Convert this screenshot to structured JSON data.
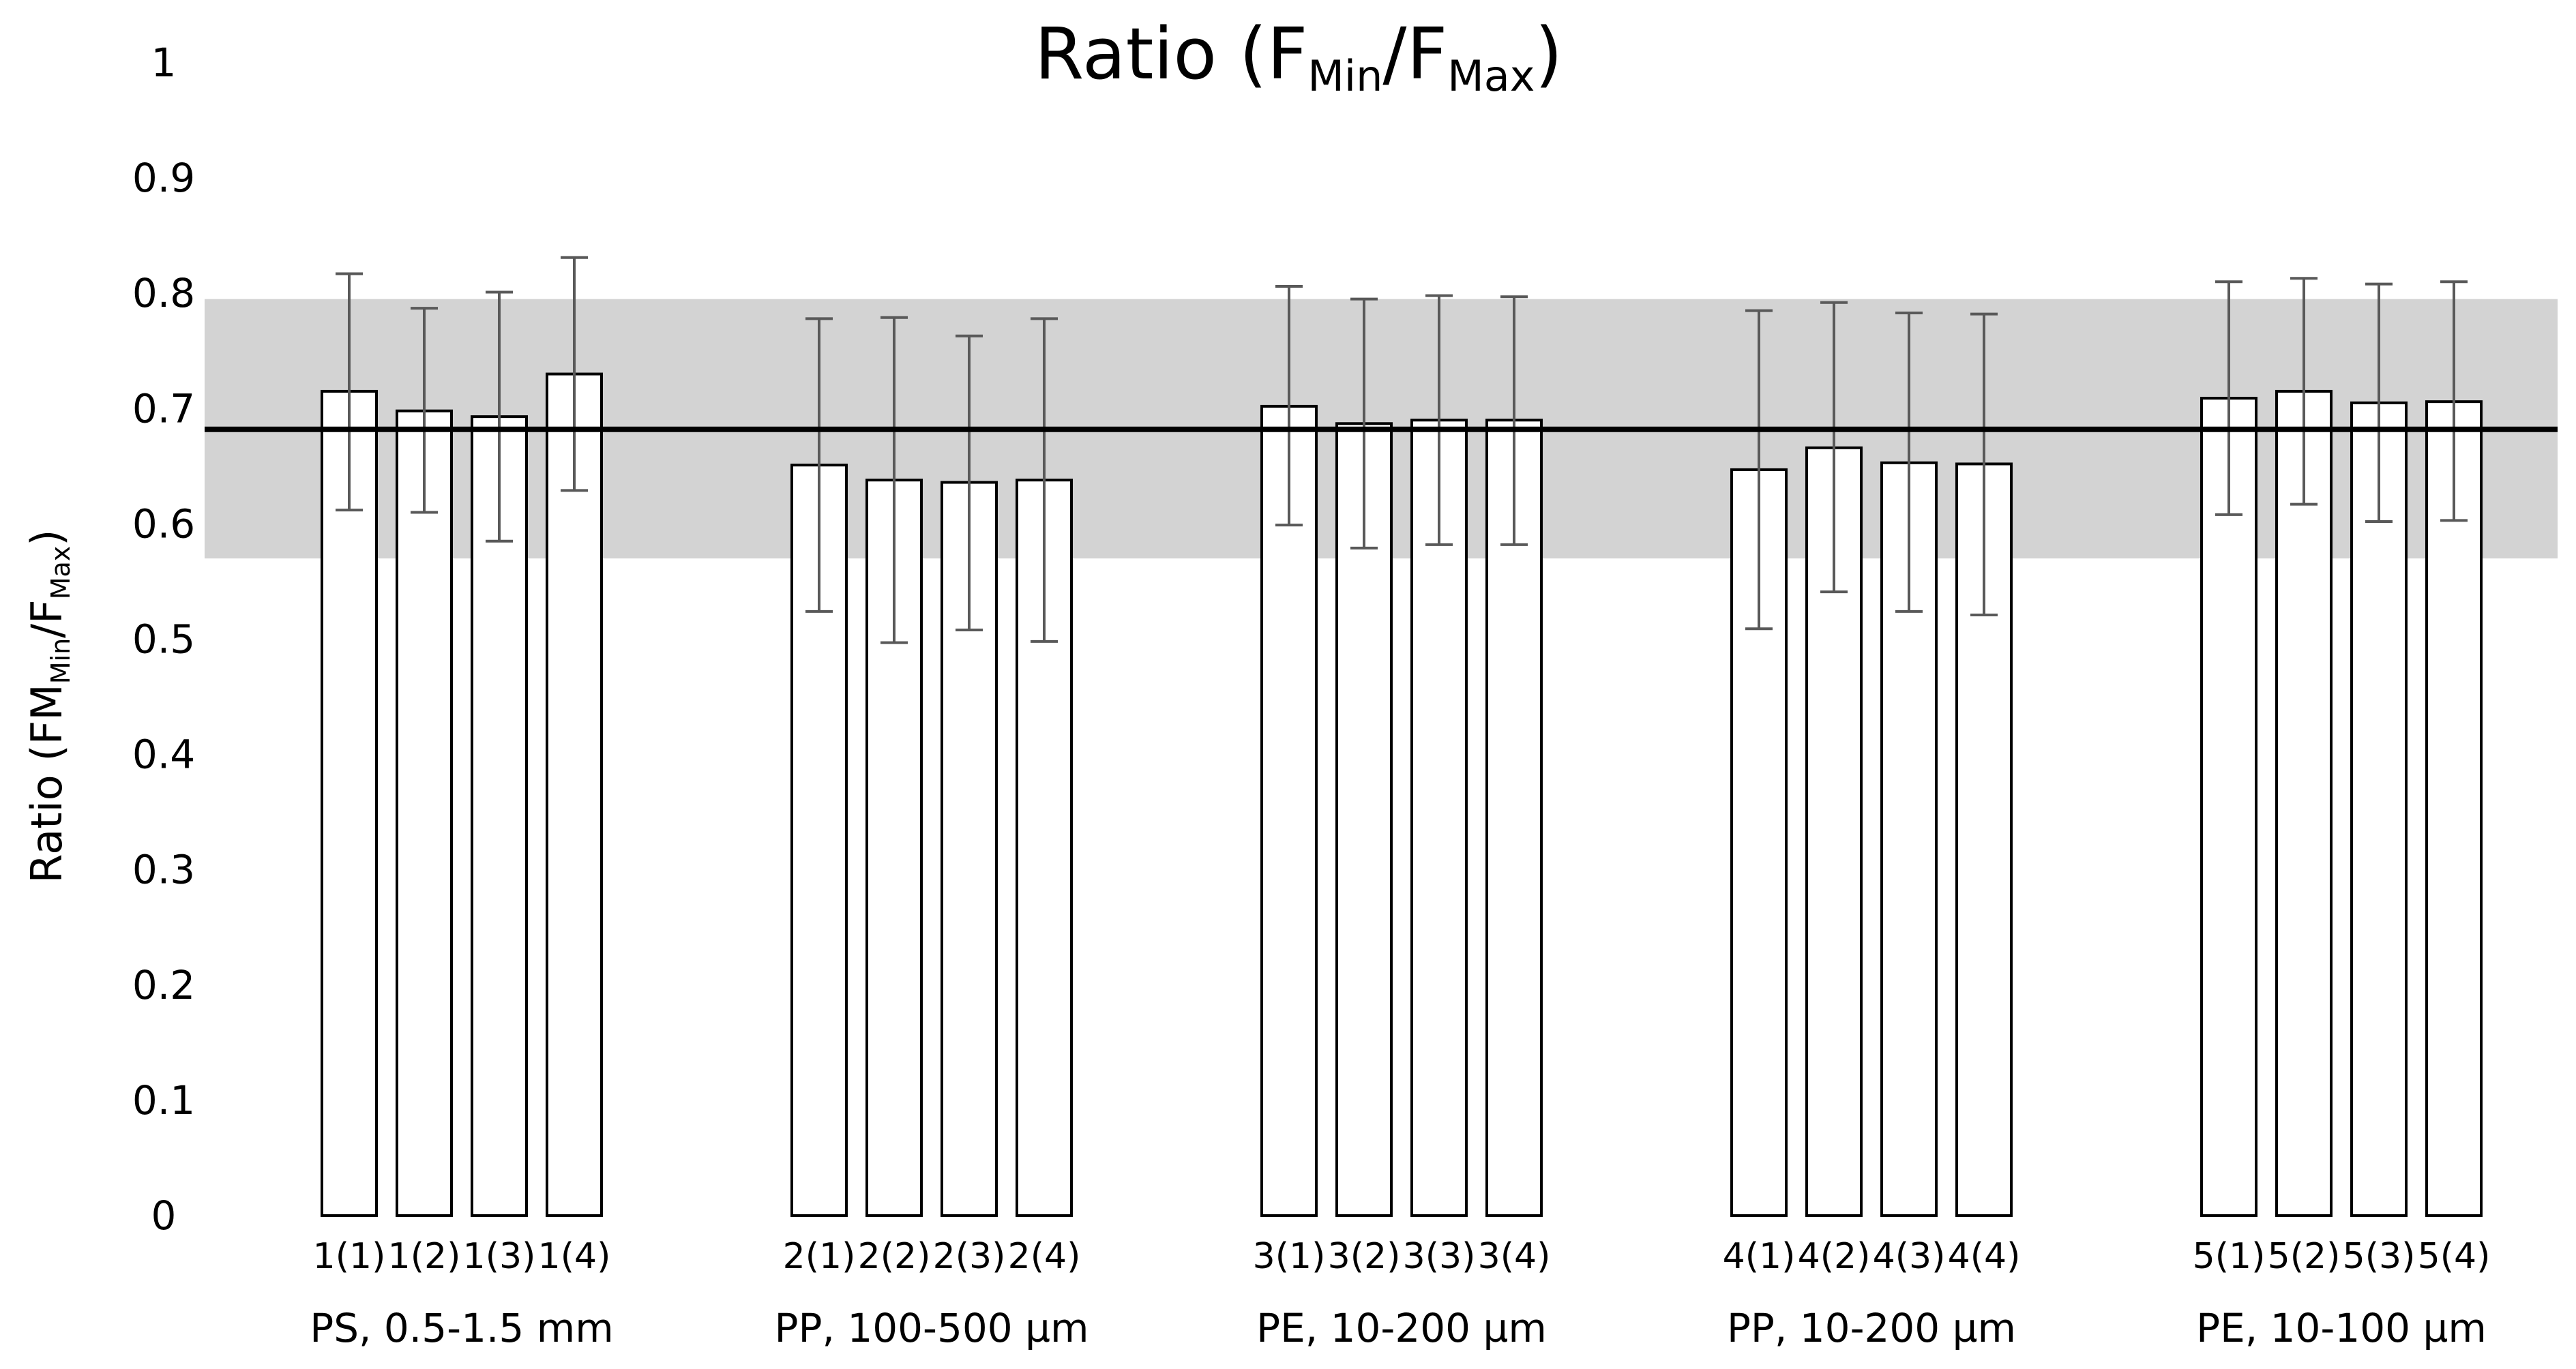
{
  "chart_data": {
    "type": "bar",
    "title": {
      "main": "Ratio (F",
      "sub1": "Min",
      "mid": "/F",
      "sub2": "Max",
      "end": ")"
    },
    "ylabel": {
      "main": "Ratio (FM",
      "sub1": "Min",
      "mid": "/F",
      "sub2": "Max",
      "end": ")"
    },
    "xlabel": "",
    "ylim": [
      0,
      1
    ],
    "yticks": [
      "0",
      "0.1",
      "0.2",
      "0.3",
      "0.4",
      "0.5",
      "0.6",
      "0.7",
      "0.8",
      "0.9",
      "1"
    ],
    "grid": false,
    "legend": "none",
    "reference_line": {
      "value": 0.682
    },
    "reference_band": {
      "low": 0.57,
      "high": 0.795
    },
    "colors": {
      "bar_fill": "#ffffff",
      "bar_stroke": "#000000",
      "band": "#d3d3d3",
      "line": "#000000",
      "error_bar": "#595959"
    },
    "groups": [
      {
        "label": "PS, 0.5-1.5 mm",
        "bars": [
          {
            "label": "1(1)",
            "value": 0.715,
            "err_low": 0.612,
            "err_high": 0.817
          },
          {
            "label": "1(2)",
            "value": 0.698,
            "err_low": 0.61,
            "err_high": 0.787
          },
          {
            "label": "1(3)",
            "value": 0.693,
            "err_low": 0.585,
            "err_high": 0.801
          },
          {
            "label": "1(4)",
            "value": 0.73,
            "err_low": 0.629,
            "err_high": 0.831
          }
        ]
      },
      {
        "label": "PP, 100-500 µm",
        "bars": [
          {
            "label": "2(1)",
            "value": 0.651,
            "err_low": 0.524,
            "err_high": 0.778
          },
          {
            "label": "2(2)",
            "value": 0.638,
            "err_low": 0.497,
            "err_high": 0.779
          },
          {
            "label": "2(3)",
            "value": 0.636,
            "err_low": 0.508,
            "err_high": 0.763
          },
          {
            "label": "2(4)",
            "value": 0.638,
            "err_low": 0.498,
            "err_high": 0.778
          }
        ]
      },
      {
        "label": "PE, 10-200 µm",
        "bars": [
          {
            "label": "3(1)",
            "value": 0.702,
            "err_low": 0.599,
            "err_high": 0.806
          },
          {
            "label": "3(2)",
            "value": 0.687,
            "err_low": 0.579,
            "err_high": 0.795
          },
          {
            "label": "3(3)",
            "value": 0.69,
            "err_low": 0.582,
            "err_high": 0.798
          },
          {
            "label": "3(4)",
            "value": 0.69,
            "err_low": 0.582,
            "err_high": 0.797
          }
        ]
      },
      {
        "label": "PP, 10-200 µm",
        "bars": [
          {
            "label": "4(1)",
            "value": 0.647,
            "err_low": 0.509,
            "err_high": 0.785
          },
          {
            "label": "4(2)",
            "value": 0.666,
            "err_low": 0.541,
            "err_high": 0.792
          },
          {
            "label": "4(3)",
            "value": 0.653,
            "err_low": 0.524,
            "err_high": 0.783
          },
          {
            "label": "4(4)",
            "value": 0.652,
            "err_low": 0.521,
            "err_high": 0.782
          }
        ]
      },
      {
        "label": "PE, 10-100 µm",
        "bars": [
          {
            "label": "5(1)",
            "value": 0.709,
            "err_low": 0.608,
            "err_high": 0.81
          },
          {
            "label": "5(2)",
            "value": 0.715,
            "err_low": 0.617,
            "err_high": 0.813
          },
          {
            "label": "5(3)",
            "value": 0.705,
            "err_low": 0.602,
            "err_high": 0.808
          },
          {
            "label": "5(4)",
            "value": 0.706,
            "err_low": 0.603,
            "err_high": 0.81
          }
        ]
      }
    ]
  }
}
